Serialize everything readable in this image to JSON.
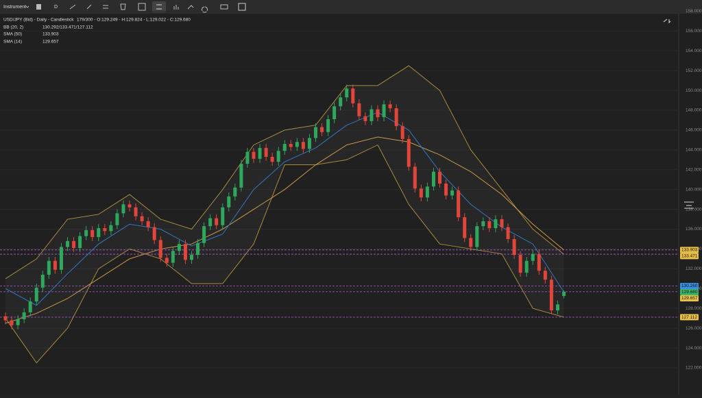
{
  "toolbar": {
    "instrument": "Instrument",
    "period": "D"
  },
  "header": {
    "title": "USD/JPY (Bid) - Daily - Candlestick",
    "ohlc": "179/300 - O:129.249 - H:129.824 - L:129.022 - C:129.680"
  },
  "chart_data": {
    "type": "candlestick",
    "up_color": "#2ea85c",
    "down_color": "#e2463a",
    "grid": true,
    "ylim": [
      119.3,
      157.75
    ],
    "yticks": [
      {
        "value": 122,
        "label": "122.000"
      },
      {
        "value": 124,
        "label": "124.000"
      },
      {
        "value": 126,
        "label": "126.000"
      },
      {
        "value": 128,
        "label": "128.000"
      },
      {
        "value": 130,
        "label": "130.000"
      },
      {
        "value": 132,
        "label": "132.000"
      },
      {
        "value": 134,
        "label": "134.000"
      },
      {
        "value": 136,
        "label": "136.000"
      },
      {
        "value": 138,
        "label": "138.000"
      },
      {
        "value": 140,
        "label": "140.000"
      },
      {
        "value": 142,
        "label": "142.000"
      },
      {
        "value": 144,
        "label": "144.000"
      },
      {
        "value": 146,
        "label": "146.000"
      },
      {
        "value": 148,
        "label": "148.000"
      },
      {
        "value": 150,
        "label": "150.000"
      },
      {
        "value": 152,
        "label": "152.000"
      },
      {
        "value": 154,
        "label": "154.000"
      },
      {
        "value": 156,
        "label": "156.000"
      },
      {
        "value": 158,
        "label": "158.000"
      }
    ],
    "open": [
      127.2,
      126.8,
      126.3,
      126.9,
      127.6,
      128.7,
      130.1,
      131.4,
      132.8,
      131.9,
      134.2,
      134.8,
      134.1,
      135.3,
      135.9,
      135.2,
      136.1,
      135.8,
      136.4,
      137.6,
      138.5,
      138.2,
      137.3,
      136.8,
      136.2,
      134.9,
      133.1,
      132.6,
      133.8,
      134.5,
      132.9,
      133.4,
      134.6,
      136.3,
      137.1,
      136.4,
      138.2,
      139.3,
      140.2,
      142.6,
      143.8,
      143.1,
      144.2,
      143.3,
      142.8,
      143.9,
      144.6,
      144.3,
      144.8,
      144.1,
      145.2,
      146.3,
      145.8,
      147.1,
      148.4,
      149.3,
      150.2,
      148.7,
      147.4,
      146.9,
      148.1,
      147.3,
      148.6,
      148.2,
      146.4,
      145.1,
      142.3,
      140.1,
      139.2,
      140.3,
      141.8,
      140.6,
      139.4,
      139.9,
      137.2,
      135.1,
      134.2,
      136.3,
      136.8,
      136.1,
      137.0,
      136.2,
      135.0,
      133.4,
      131.6,
      132.8,
      133.5,
      131.8,
      130.9,
      127.8,
      129.249
    ],
    "high": [
      127.6,
      127.2,
      127.3,
      128.0,
      129.1,
      130.5,
      131.8,
      133.2,
      133.2,
      134.6,
      135.2,
      135.2,
      135.7,
      136.3,
      136.3,
      136.5,
      136.5,
      136.8,
      138.0,
      138.9,
      138.9,
      138.6,
      137.7,
      137.2,
      136.6,
      135.3,
      133.5,
      134.2,
      134.9,
      134.9,
      133.8,
      135.0,
      136.7,
      137.5,
      137.5,
      138.6,
      139.7,
      140.6,
      143.0,
      144.2,
      144.2,
      144.6,
      144.6,
      143.7,
      144.3,
      145.0,
      145.0,
      145.2,
      145.2,
      145.6,
      146.7,
      146.7,
      147.5,
      148.8,
      149.7,
      150.6,
      150.6,
      149.1,
      147.8,
      148.5,
      148.5,
      149.0,
      149.0,
      148.6,
      146.8,
      145.5,
      142.7,
      140.5,
      140.7,
      142.2,
      142.2,
      141.0,
      140.3,
      140.3,
      137.6,
      135.5,
      136.7,
      137.2,
      137.2,
      137.4,
      137.4,
      136.6,
      135.4,
      133.8,
      133.2,
      133.9,
      133.9,
      132.2,
      131.3,
      128.8,
      129.824
    ],
    "low": [
      126.4,
      125.9,
      125.9,
      126.5,
      127.2,
      128.3,
      129.7,
      131.0,
      131.5,
      131.5,
      133.8,
      133.7,
      133.7,
      134.9,
      134.8,
      134.8,
      135.4,
      135.4,
      136.0,
      137.2,
      137.8,
      136.9,
      136.4,
      135.8,
      134.5,
      132.7,
      132.2,
      132.2,
      133.4,
      132.5,
      132.5,
      133.0,
      134.2,
      135.9,
      136.0,
      136.0,
      137.8,
      138.9,
      139.8,
      142.2,
      142.7,
      142.7,
      142.9,
      142.4,
      142.4,
      143.5,
      143.9,
      143.9,
      143.7,
      143.7,
      144.8,
      145.4,
      145.4,
      146.7,
      148.0,
      148.9,
      148.3,
      147.0,
      146.5,
      146.5,
      146.9,
      146.9,
      147.8,
      146.0,
      144.7,
      141.9,
      139.7,
      138.8,
      138.8,
      139.9,
      140.2,
      139.0,
      139.0,
      136.8,
      134.7,
      133.8,
      133.8,
      135.9,
      135.7,
      135.7,
      135.8,
      134.6,
      133.0,
      131.2,
      131.2,
      132.4,
      131.4,
      130.5,
      127.4,
      127.4,
      129.022
    ],
    "close": [
      126.8,
      126.3,
      126.9,
      127.6,
      128.7,
      130.1,
      131.4,
      132.8,
      131.9,
      134.2,
      134.8,
      134.1,
      135.3,
      135.9,
      135.2,
      136.1,
      135.8,
      136.4,
      137.6,
      138.5,
      138.2,
      137.3,
      136.8,
      136.2,
      134.9,
      133.1,
      132.6,
      133.8,
      134.5,
      132.9,
      133.4,
      134.6,
      136.3,
      137.1,
      136.4,
      138.2,
      139.3,
      140.2,
      142.6,
      143.8,
      143.1,
      144.2,
      143.3,
      142.8,
      143.9,
      144.6,
      144.3,
      144.8,
      144.1,
      145.2,
      146.3,
      145.8,
      147.1,
      148.4,
      149.3,
      150.2,
      148.7,
      147.4,
      146.9,
      148.1,
      147.3,
      148.6,
      148.2,
      146.4,
      145.1,
      142.3,
      140.1,
      139.2,
      140.3,
      141.8,
      140.6,
      139.4,
      139.9,
      137.2,
      135.1,
      134.2,
      136.3,
      136.8,
      136.1,
      137.0,
      136.2,
      135.0,
      133.4,
      131.6,
      132.8,
      133.5,
      131.8,
      130.9,
      127.8,
      128.4,
      129.68
    ],
    "bands": {
      "name": "BB (20, 2)",
      "label": "130.292/133.471/127.112",
      "color": "#a88a3c",
      "x": [
        0,
        5,
        10,
        15,
        20,
        25,
        30,
        35,
        40,
        45,
        50,
        55,
        60,
        65,
        70,
        75,
        80,
        85,
        90
      ],
      "upper": [
        131,
        133,
        137,
        137.5,
        139.5,
        137,
        136,
        140,
        144.5,
        146,
        146.5,
        150.5,
        150.5,
        152.5,
        150,
        144,
        140,
        136,
        133.471
      ],
      "lower": [
        127,
        122.5,
        126,
        132,
        134,
        133,
        130.5,
        130.5,
        134.5,
        142.5,
        142.5,
        143,
        144.5,
        138.5,
        134.5,
        134,
        133.5,
        128,
        127.112
      ]
    },
    "series": [
      {
        "name": "SMA (50)",
        "label": "133.903",
        "color": "#c99a45",
        "x": [
          0,
          5,
          10,
          15,
          20,
          25,
          30,
          35,
          40,
          45,
          50,
          55,
          60,
          65,
          70,
          75,
          80,
          85,
          90
        ],
        "values": [
          126.5,
          127.5,
          129,
          131,
          133,
          134,
          134.5,
          136,
          138,
          140,
          142.5,
          144.5,
          145.3,
          144.8,
          143.5,
          141.8,
          139.5,
          136.5,
          133.903
        ]
      },
      {
        "name": "SMA (14)",
        "label": "129.657",
        "color": "#2f78c4",
        "x": [
          0,
          5,
          10,
          15,
          20,
          25,
          30,
          35,
          40,
          45,
          50,
          55,
          60,
          65,
          70,
          75,
          80,
          85,
          90
        ],
        "values": [
          130,
          128.3,
          131.5,
          134.5,
          136.5,
          136,
          134.3,
          135.5,
          140,
          142.8,
          144.2,
          146.5,
          147.8,
          146,
          141.8,
          138.5,
          136.2,
          134.5,
          129.657
        ]
      }
    ],
    "price_tags": [
      {
        "value": 133.903,
        "label": "133.903",
        "color": "#e8c04a"
      },
      {
        "value": 133.471,
        "label": "133.471",
        "color": "#e8c04a"
      },
      {
        "value": 130.26,
        "label": "130.260",
        "color": "#3a8ee0"
      },
      {
        "value": 129.68,
        "label": "129.680",
        "color": "#3cb56a"
      },
      {
        "value": 129.657,
        "label": "129.657",
        "color": "#e8c04a"
      },
      {
        "value": 127.112,
        "label": "127.112",
        "color": "#e8c04a"
      }
    ]
  }
}
